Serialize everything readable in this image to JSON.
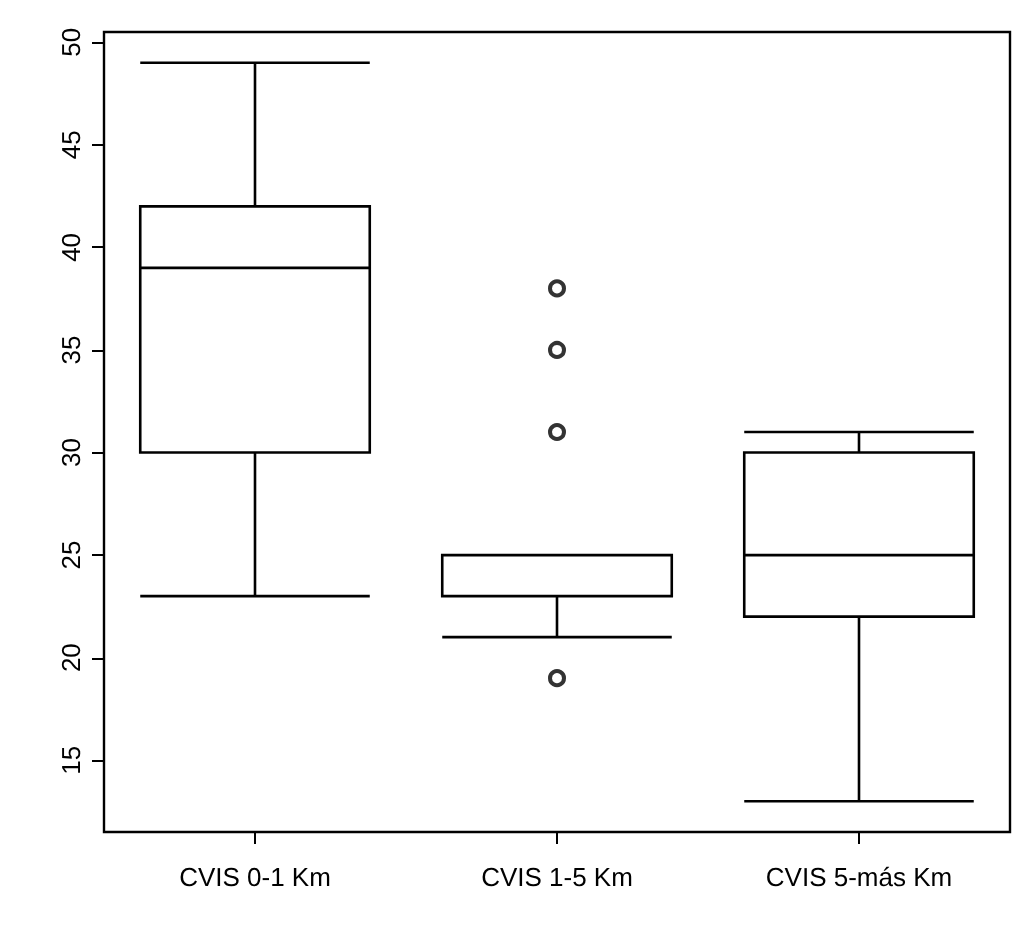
{
  "chart_data": {
    "type": "box",
    "categories": [
      "CVIS 0-1 Km",
      "CVIS 1-5 Km",
      "CVIS 5-más Km"
    ],
    "series": [
      {
        "color": "#000000",
        "boxes": [
          {
            "low": 23,
            "q1": 30,
            "median": 39,
            "q3": 42,
            "high": 49
          },
          {
            "low": 21,
            "q1": 23,
            "median": 23,
            "q3": 25,
            "high": 25,
            "outliers": [
              38,
              35,
              31,
              19
            ]
          },
          {
            "low": 13,
            "q1": 22,
            "median": 25,
            "q3": 30,
            "high": 31
          }
        ]
      }
    ],
    "ylim": [
      11.5,
      50.5
    ],
    "yticks": [
      15,
      20,
      25,
      30,
      35,
      40,
      45,
      50
    ],
    "grid": false,
    "marker": "circle"
  }
}
